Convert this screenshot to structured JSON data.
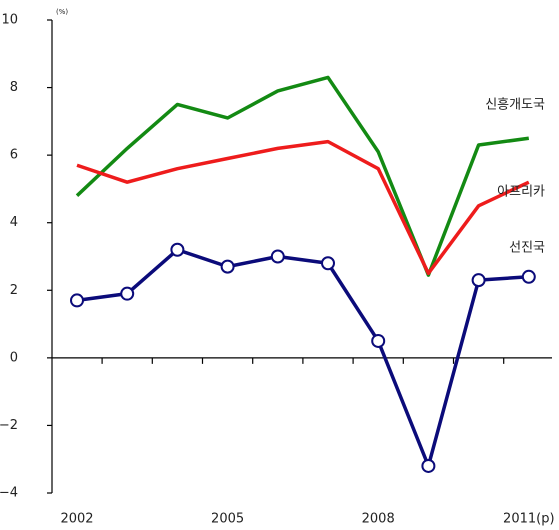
{
  "chart_data": {
    "type": "line",
    "unit_label": "(%)",
    "categories": [
      "2002",
      null,
      null,
      "2005",
      null,
      null,
      "2008",
      null,
      null,
      "2011(p)"
    ],
    "series": [
      {
        "name": "신흥개도국",
        "color": "#138a13",
        "values": [
          4.8,
          6.2,
          7.5,
          7.1,
          7.9,
          8.3,
          6.1,
          2.45,
          6.3,
          6.5
        ]
      },
      {
        "name": "아프리카",
        "color": "#ee1c1c",
        "values": [
          5.7,
          5.2,
          5.6,
          5.9,
          6.2,
          6.4,
          5.6,
          2.5,
          4.5,
          5.2
        ]
      },
      {
        "name": "선진국",
        "color": "#0b0b7a",
        "markers": true,
        "values": [
          1.7,
          1.9,
          3.2,
          2.7,
          3.0,
          2.8,
          0.5,
          -3.2,
          2.3,
          2.4
        ]
      }
    ],
    "ylim": [
      -4,
      10
    ],
    "yticks": [
      {
        "value": -4,
        "label": "−4"
      },
      {
        "value": -2,
        "label": "−2"
      },
      0,
      2,
      4,
      6,
      8,
      10
    ]
  }
}
